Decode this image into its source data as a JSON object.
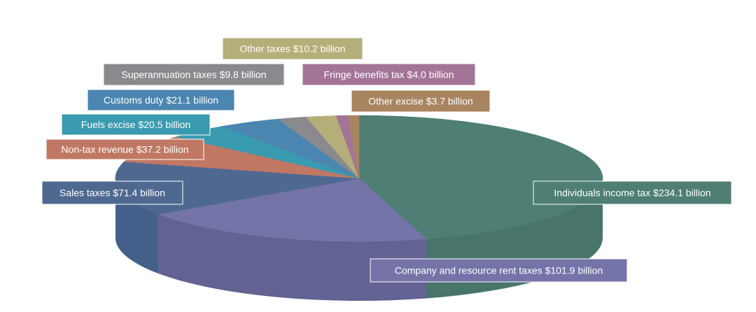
{
  "chart_data": {
    "type": "pie",
    "title": "",
    "unit": "$ billion",
    "slices": [
      {
        "name": "Individuals income tax",
        "value": 234.1,
        "label": "Individuals income tax $234.1 billion",
        "color": "#4e7e74",
        "side_color": "#4e7e74"
      },
      {
        "name": "Company and resource rent taxes",
        "value": 101.9,
        "label": "Company and resource rent taxes $101.9 billion",
        "color": "#7474a8",
        "side_color": "#6a6aa0"
      },
      {
        "name": "Sales taxes",
        "value": 71.4,
        "label": "Sales taxes $71.4 billion",
        "color": "#4f6890",
        "side_color": "#4a6896"
      },
      {
        "name": "Non-tax revenue",
        "value": 37.2,
        "label": "Non-tax revenue $37.2 billion",
        "color": "#c07864",
        "side_color": "#b0705e"
      },
      {
        "name": "Fuels excise",
        "value": 20.5,
        "label": "Fuels excise $20.5 billion",
        "color": "#3a9ab0",
        "side_color": "#3a9ab0"
      },
      {
        "name": "Customs duty",
        "value": 21.1,
        "label": "Customs duty $21.1 billion",
        "color": "#4a86b0",
        "side_color": "#4a86b0"
      },
      {
        "name": "Superannuation taxes",
        "value": 9.8,
        "label": "Superannuation taxes $9.8 billion",
        "color": "#8a8a8e",
        "side_color": "#8a8a8e"
      },
      {
        "name": "Other taxes",
        "value": 10.2,
        "label": "Other taxes $10.2 billion",
        "color": "#b4ae78",
        "side_color": "#b4ae78"
      },
      {
        "name": "Fringe benefits tax",
        "value": 4.0,
        "label": "Fringe benefits  tax $4.0 billion",
        "color": "#a47498",
        "side_color": "#a47498"
      },
      {
        "name": "Other excise",
        "value": 3.7,
        "label": "Other excise $3.7 billion",
        "color": "#a88460",
        "side_color": "#a88460"
      }
    ]
  }
}
